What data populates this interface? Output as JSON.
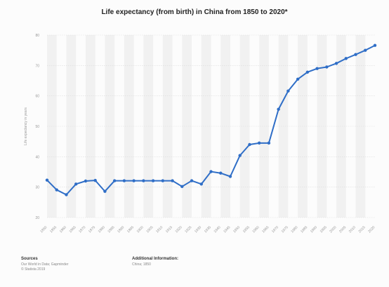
{
  "chart_data": {
    "type": "line",
    "title": "Life expectancy (from birth) in China from 1850 to 2020*",
    "ylabel": "Life expectancy in years",
    "xlabel": "",
    "ylim": [
      20,
      80
    ],
    "yticks": [
      20,
      30,
      40,
      50,
      60,
      70,
      80
    ],
    "grid": true,
    "categories": [
      "1850",
      "1855",
      "1860",
      "1865",
      "1870",
      "1875",
      "1880",
      "1885",
      "1890",
      "1895",
      "1900",
      "1905",
      "1910",
      "1915",
      "1920",
      "1925",
      "1930",
      "1935",
      "1940",
      "1945",
      "1950",
      "1955",
      "1960",
      "1965",
      "1970",
      "1975",
      "1980",
      "1985",
      "1990",
      "1995",
      "2000",
      "2005",
      "2010",
      "2015",
      "2020"
    ],
    "series": [
      {
        "values": [
          32.3,
          29.1,
          27.5,
          31.0,
          32.0,
          32.2,
          28.6,
          32.1,
          32.1,
          32.1,
          32.1,
          32.1,
          32.1,
          32.1,
          30.2,
          32.1,
          31.0,
          35.1,
          34.6,
          33.5,
          40.4,
          44.0,
          44.5,
          44.5,
          55.6,
          61.6,
          65.5,
          67.8,
          69.0,
          69.5,
          70.7,
          72.3,
          73.6,
          75.0,
          76.6
        ]
      }
    ],
    "color": "#2f6ec7"
  },
  "footer": {
    "source_heading": "Sources",
    "source_line1": "Our World in Data; Gapminder",
    "source_line2": "© Statista 2019",
    "info_heading": "Additional Information:",
    "info_line1": "China; 1850"
  }
}
